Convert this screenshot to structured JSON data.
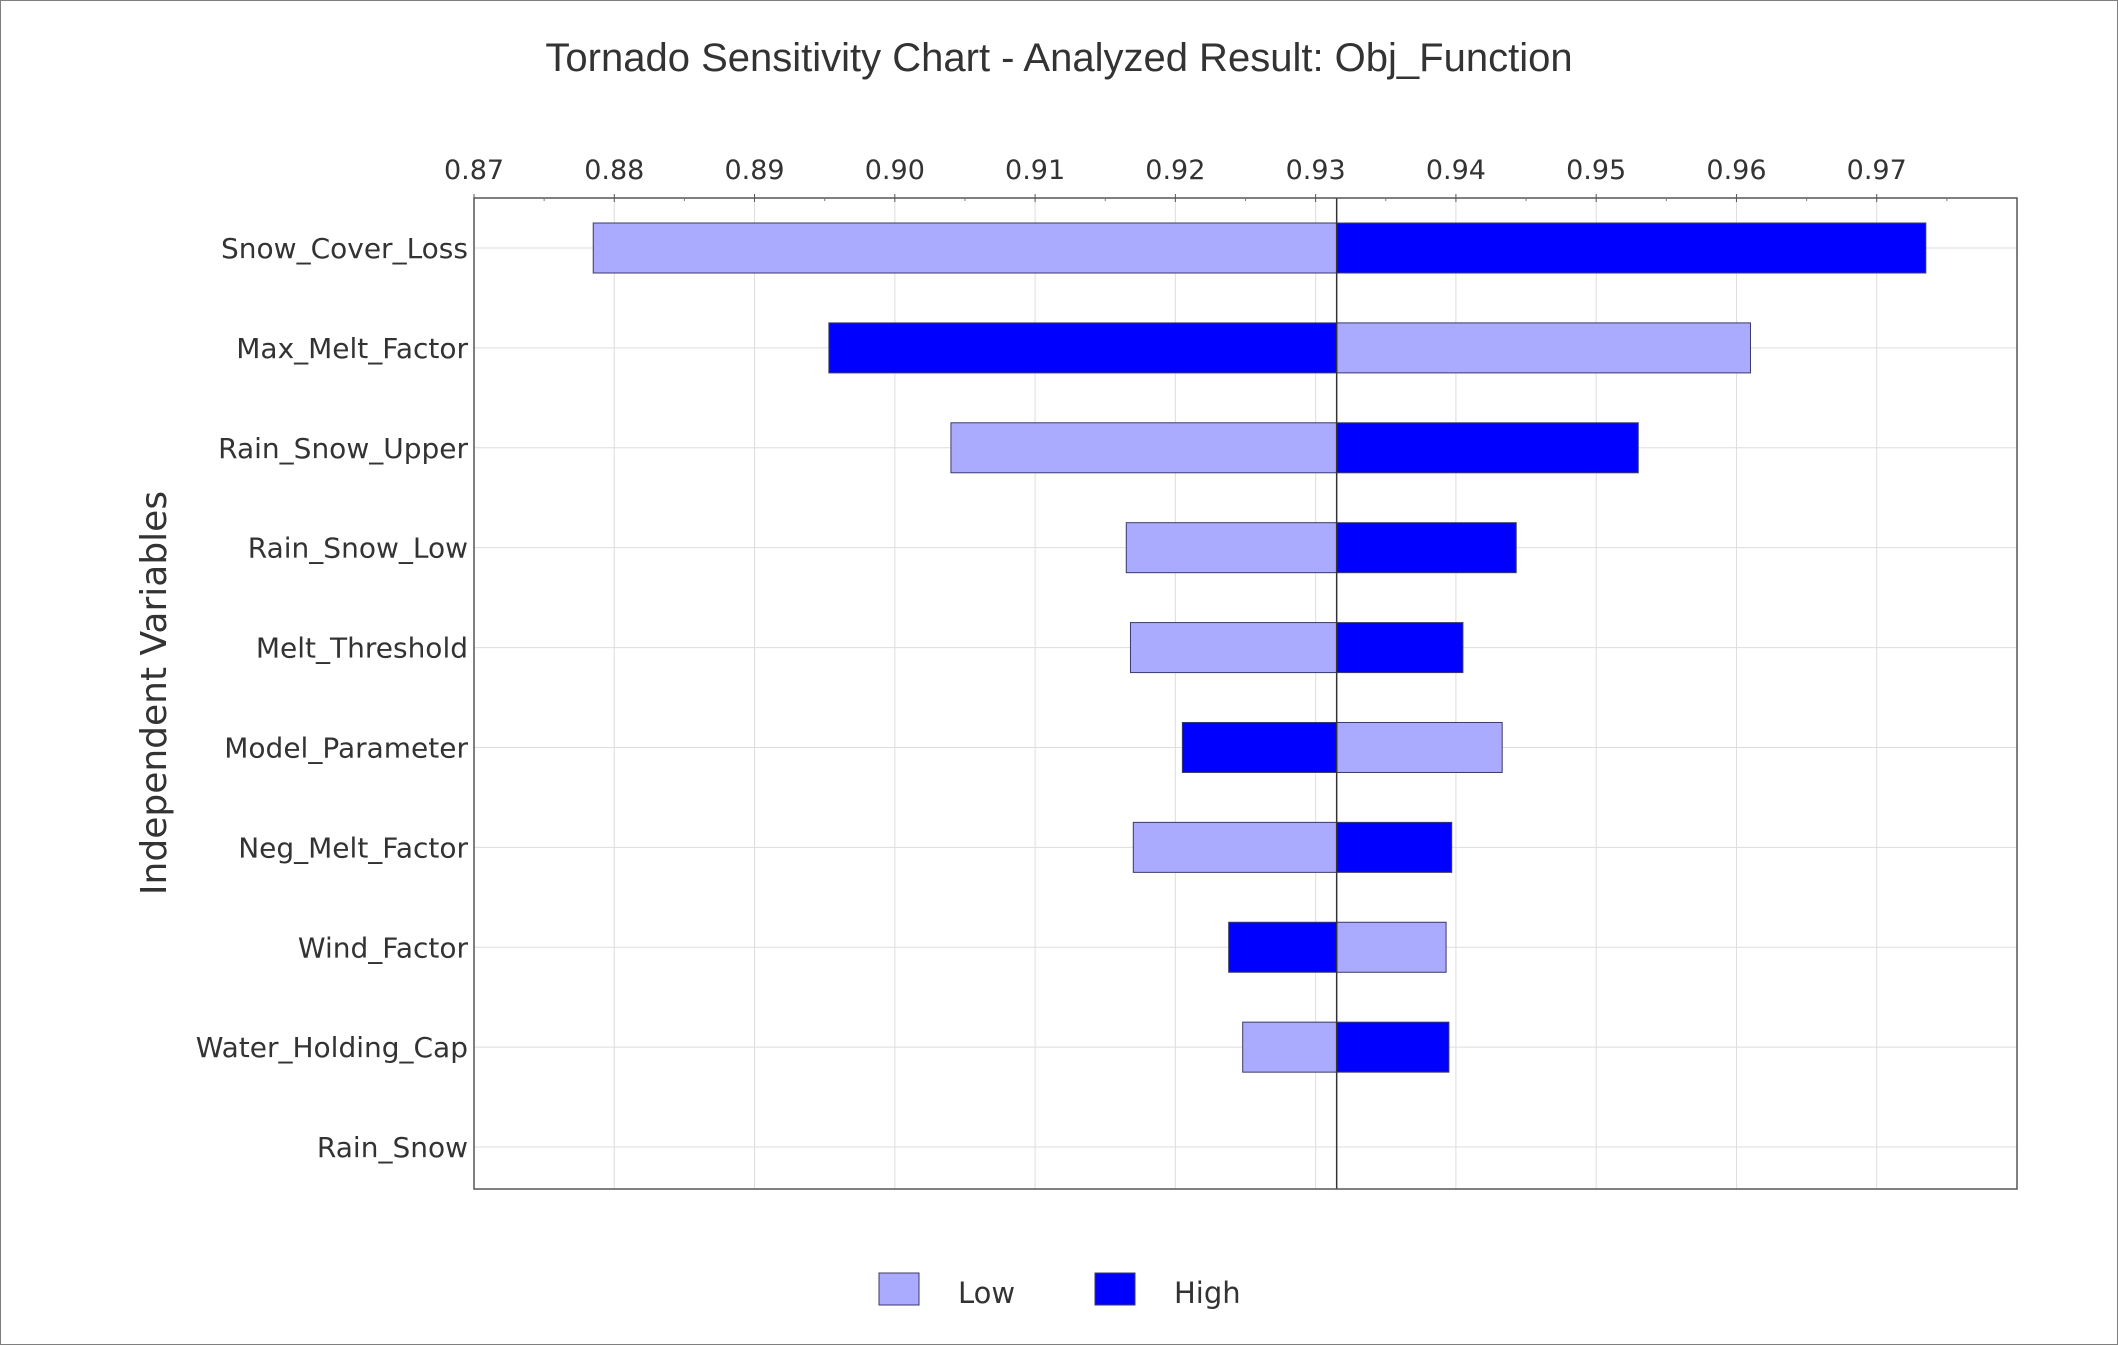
{
  "colors": {
    "low": "#aaaaff",
    "high": "#0000ff",
    "bar_border": "#3a3a6a",
    "text": "#333333"
  },
  "chart_data": {
    "type": "bar",
    "orientation": "horizontal",
    "subtype": "tornado",
    "title": "Tornado Sensitivity Chart - Analyzed Result: Obj_Function",
    "ylabel": "Independent Variables",
    "xlabel": "",
    "xlim": [
      0.87,
      0.98
    ],
    "x_ticks": [
      "0.87",
      "0.88",
      "0.89",
      "0.90",
      "0.91",
      "0.92",
      "0.93",
      "0.94",
      "0.95",
      "0.96",
      "0.97"
    ],
    "x_tick_values": [
      0.87,
      0.88,
      0.89,
      0.9,
      0.91,
      0.92,
      0.93,
      0.94,
      0.95,
      0.96,
      0.97
    ],
    "x_axis_position": "top",
    "base_value": 0.9315,
    "grid": true,
    "legend": {
      "position": "bottom-center",
      "entries": [
        "Low",
        "High"
      ]
    },
    "categories": [
      "Snow_Cover_Loss",
      "Max_Melt_Factor",
      "Rain_Snow_Upper",
      "Rain_Snow_Low",
      "Melt_Threshold",
      "Model_Parameter",
      "Neg_Melt_Factor",
      "Wind_Factor",
      "Water_Holding_Cap",
      "Rain_Snow"
    ],
    "series": [
      {
        "name": "Low",
        "values": [
          0.8785,
          0.961,
          0.904,
          0.9165,
          0.9168,
          0.9433,
          0.917,
          0.9393,
          0.9248,
          0.9315
        ]
      },
      {
        "name": "High",
        "values": [
          0.9735,
          0.8953,
          0.953,
          0.9443,
          0.9405,
          0.9205,
          0.9397,
          0.9238,
          0.9395,
          0.9315
        ]
      }
    ]
  }
}
